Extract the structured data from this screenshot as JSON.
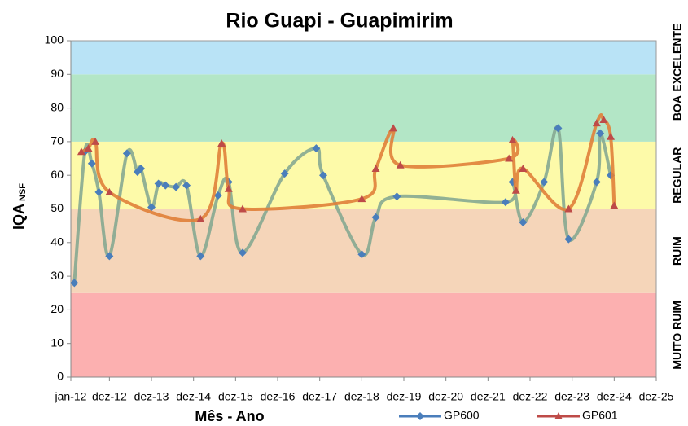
{
  "chart_data": {
    "type": "line",
    "title": "Rio Guapi - Guapimirim",
    "x_label": "Mês - Ano",
    "y_label": "IQA",
    "y_label_sub": "NSF",
    "ylim": [
      0,
      100
    ],
    "yticks": [
      0,
      10,
      20,
      30,
      40,
      50,
      60,
      70,
      80,
      90,
      100
    ],
    "xlim": [
      "2012-01",
      "2025-12"
    ],
    "xticks": [
      {
        "value": "2012-01",
        "label": "jan-12"
      },
      {
        "value": "2012-12",
        "label": "dez-12"
      },
      {
        "value": "2013-12",
        "label": "dez-13"
      },
      {
        "value": "2014-12",
        "label": "dez-14"
      },
      {
        "value": "2015-12",
        "label": "dez-15"
      },
      {
        "value": "2016-12",
        "label": "dez-16"
      },
      {
        "value": "2017-12",
        "label": "dez-17"
      },
      {
        "value": "2018-12",
        "label": "dez-18"
      },
      {
        "value": "2019-12",
        "label": "dez-19"
      },
      {
        "value": "2020-12",
        "label": "dez-20"
      },
      {
        "value": "2021-12",
        "label": "dez-21"
      },
      {
        "value": "2022-12",
        "label": "dez-22"
      },
      {
        "value": "2023-12",
        "label": "dez-23"
      },
      {
        "value": "2024-12",
        "label": "dez-24"
      },
      {
        "value": "2025-12",
        "label": "dez-25"
      }
    ],
    "bands": [
      {
        "name": "MUITO RUIM",
        "from": 0,
        "to": 25,
        "color": "#fcb0b0"
      },
      {
        "name": "RUIM",
        "from": 25,
        "to": 50,
        "color": "#f5d5b9"
      },
      {
        "name": "REGULAR",
        "from": 50,
        "to": 70,
        "color": "#fdfaa9"
      },
      {
        "name": "BOA",
        "from": 70,
        "to": 90,
        "color": "#b3e6c6"
      },
      {
        "name": "EXCELENTE",
        "from": 90,
        "to": 100,
        "color": "#b9e3f6"
      }
    ],
    "legend": "bottom",
    "series": [
      {
        "name": "GP600",
        "color": "#4a7ebb",
        "line_color": "#86a991",
        "marker": "diamond",
        "x": [
          "2012-02",
          "2012-05",
          "2012-07",
          "2012-09",
          "2012-12",
          "2013-05",
          "2013-08",
          "2013-09",
          "2013-12",
          "2014-02",
          "2014-04",
          "2014-07",
          "2014-10",
          "2015-02",
          "2015-07",
          "2015-10",
          "2016-02",
          "2017-02",
          "2017-11",
          "2018-01",
          "2018-12",
          "2019-04",
          "2019-10",
          "2022-05",
          "2022-07",
          "2022-10",
          "2023-04",
          "2023-08",
          "2023-11",
          "2024-07",
          "2024-08",
          "2024-11"
        ],
        "values": [
          28,
          67,
          63.5,
          55,
          36,
          66.5,
          61,
          62,
          50.5,
          57.5,
          57,
          56.5,
          57,
          36,
          54,
          58,
          37,
          60.5,
          68,
          60,
          36.5,
          47.5,
          53.7,
          52,
          58,
          46,
          58,
          74,
          41,
          58,
          72.5,
          60
        ]
      },
      {
        "name": "GP601",
        "color": "#be4b48",
        "line_color": "#e07f38",
        "marker": "triangle",
        "x": [
          "2012-04",
          "2012-06",
          "2012-08",
          "2012-12",
          "2015-02",
          "2015-08",
          "2015-10",
          "2016-02",
          "2018-12",
          "2019-04",
          "2019-09",
          "2019-11",
          "2022-06",
          "2022-07",
          "2022-08",
          "2022-10",
          "2023-11",
          "2024-07",
          "2024-09",
          "2024-11",
          "2024-12"
        ],
        "values": [
          67,
          68,
          70,
          55,
          47,
          69.5,
          56,
          50,
          53,
          62,
          74,
          63,
          65,
          70.5,
          55.5,
          62,
          50,
          75.5,
          76.5,
          71.5,
          51
        ]
      }
    ]
  }
}
